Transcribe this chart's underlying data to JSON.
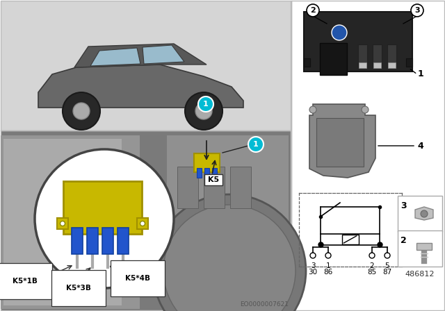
{
  "bg_color": "#ffffff",
  "top_left_bg": "#d5d5d5",
  "bottom_left_bg": "#8a8a8a",
  "right_bg": "#ffffff",
  "callout_fill": "#00bcd4",
  "callout_text": "#ffffff",
  "relay_yellow": "#c8b800",
  "connector_blue": "#2255cc",
  "label_k5": "K5",
  "label_k51b": "K5*1B",
  "label_k53b": "K5*3B",
  "label_k54b": "K5*4B",
  "pin_top": [
    "3",
    "1",
    "2",
    "5"
  ],
  "pin_bot": [
    "30",
    "86",
    "85",
    "87"
  ],
  "eo_number": "EO0000007621",
  "part_number": "486812",
  "border_color": "#bbbbbb",
  "dark_relay": "#282828",
  "bracket_color": "#888888"
}
